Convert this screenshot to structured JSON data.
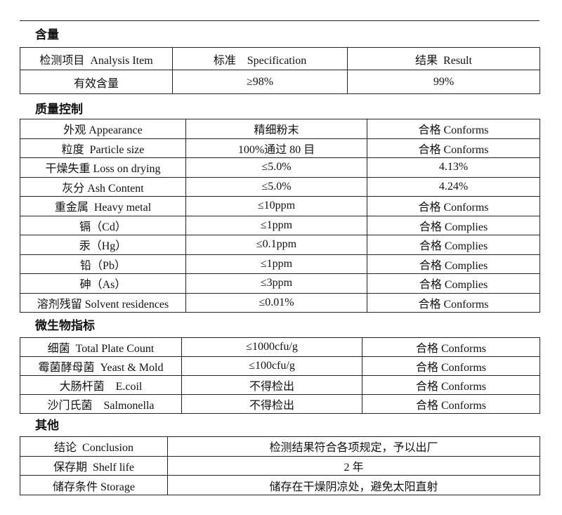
{
  "sections": [
    {
      "title": "含量",
      "header": [
        "检测项目  Analysis Item",
        "标准    Specification",
        "结果  Result"
      ],
      "rows": [
        [
          "有效含量",
          "≥98%",
          "99%"
        ]
      ]
    },
    {
      "title": "质量控制",
      "rows": [
        [
          "外观 Appearance",
          "精细粉末",
          "合格 Conforms"
        ],
        [
          "粒度  Particle size",
          "100%通过 80 目",
          "合格 Conforms"
        ],
        [
          "干燥失重 Loss on drying",
          "≤5.0%",
          "4.13%"
        ],
        [
          "灰分 Ash Content",
          "≤5.0%",
          "4.24%"
        ],
        [
          "重金属  Heavy metal",
          "≤10ppm",
          "合格 Conforms"
        ],
        [
          "镉（Cd）",
          "≤1ppm",
          "合格 Complies"
        ],
        [
          "汞（Hg）",
          "≤0.1ppm",
          "合格 Complies"
        ],
        [
          "铅（Pb）",
          "≤1ppm",
          "合格 Complies"
        ],
        [
          "砷（As）",
          "≤3ppm",
          "合格 Complies"
        ],
        [
          "溶剂残留 Solvent residences",
          "≤0.01%",
          "合格 Conforms"
        ]
      ]
    },
    {
      "title": "微生物指标",
      "rows": [
        [
          "细菌  Total Plate Count",
          "≤1000cfu/g",
          "合格 Conforms"
        ],
        [
          "霉菌酵母菌  Yeast & Mold",
          "≤100cfu/g",
          "合格 Conforms"
        ],
        [
          "大肠杆菌    E.coil",
          "不得检出",
          "合格 Conforms"
        ],
        [
          "沙门氏菌    Salmonella",
          "不得检出",
          "合格 Conforms"
        ]
      ]
    },
    {
      "title": "其他",
      "rows": [
        [
          "结论  Conclusion",
          "检测结果符合各项规定，予以出厂"
        ],
        [
          "保存期  Shelf life",
          "2 年"
        ],
        [
          "储存条件 Storage",
          "储存在干燥阴凉处，避免太阳直射"
        ]
      ]
    }
  ]
}
